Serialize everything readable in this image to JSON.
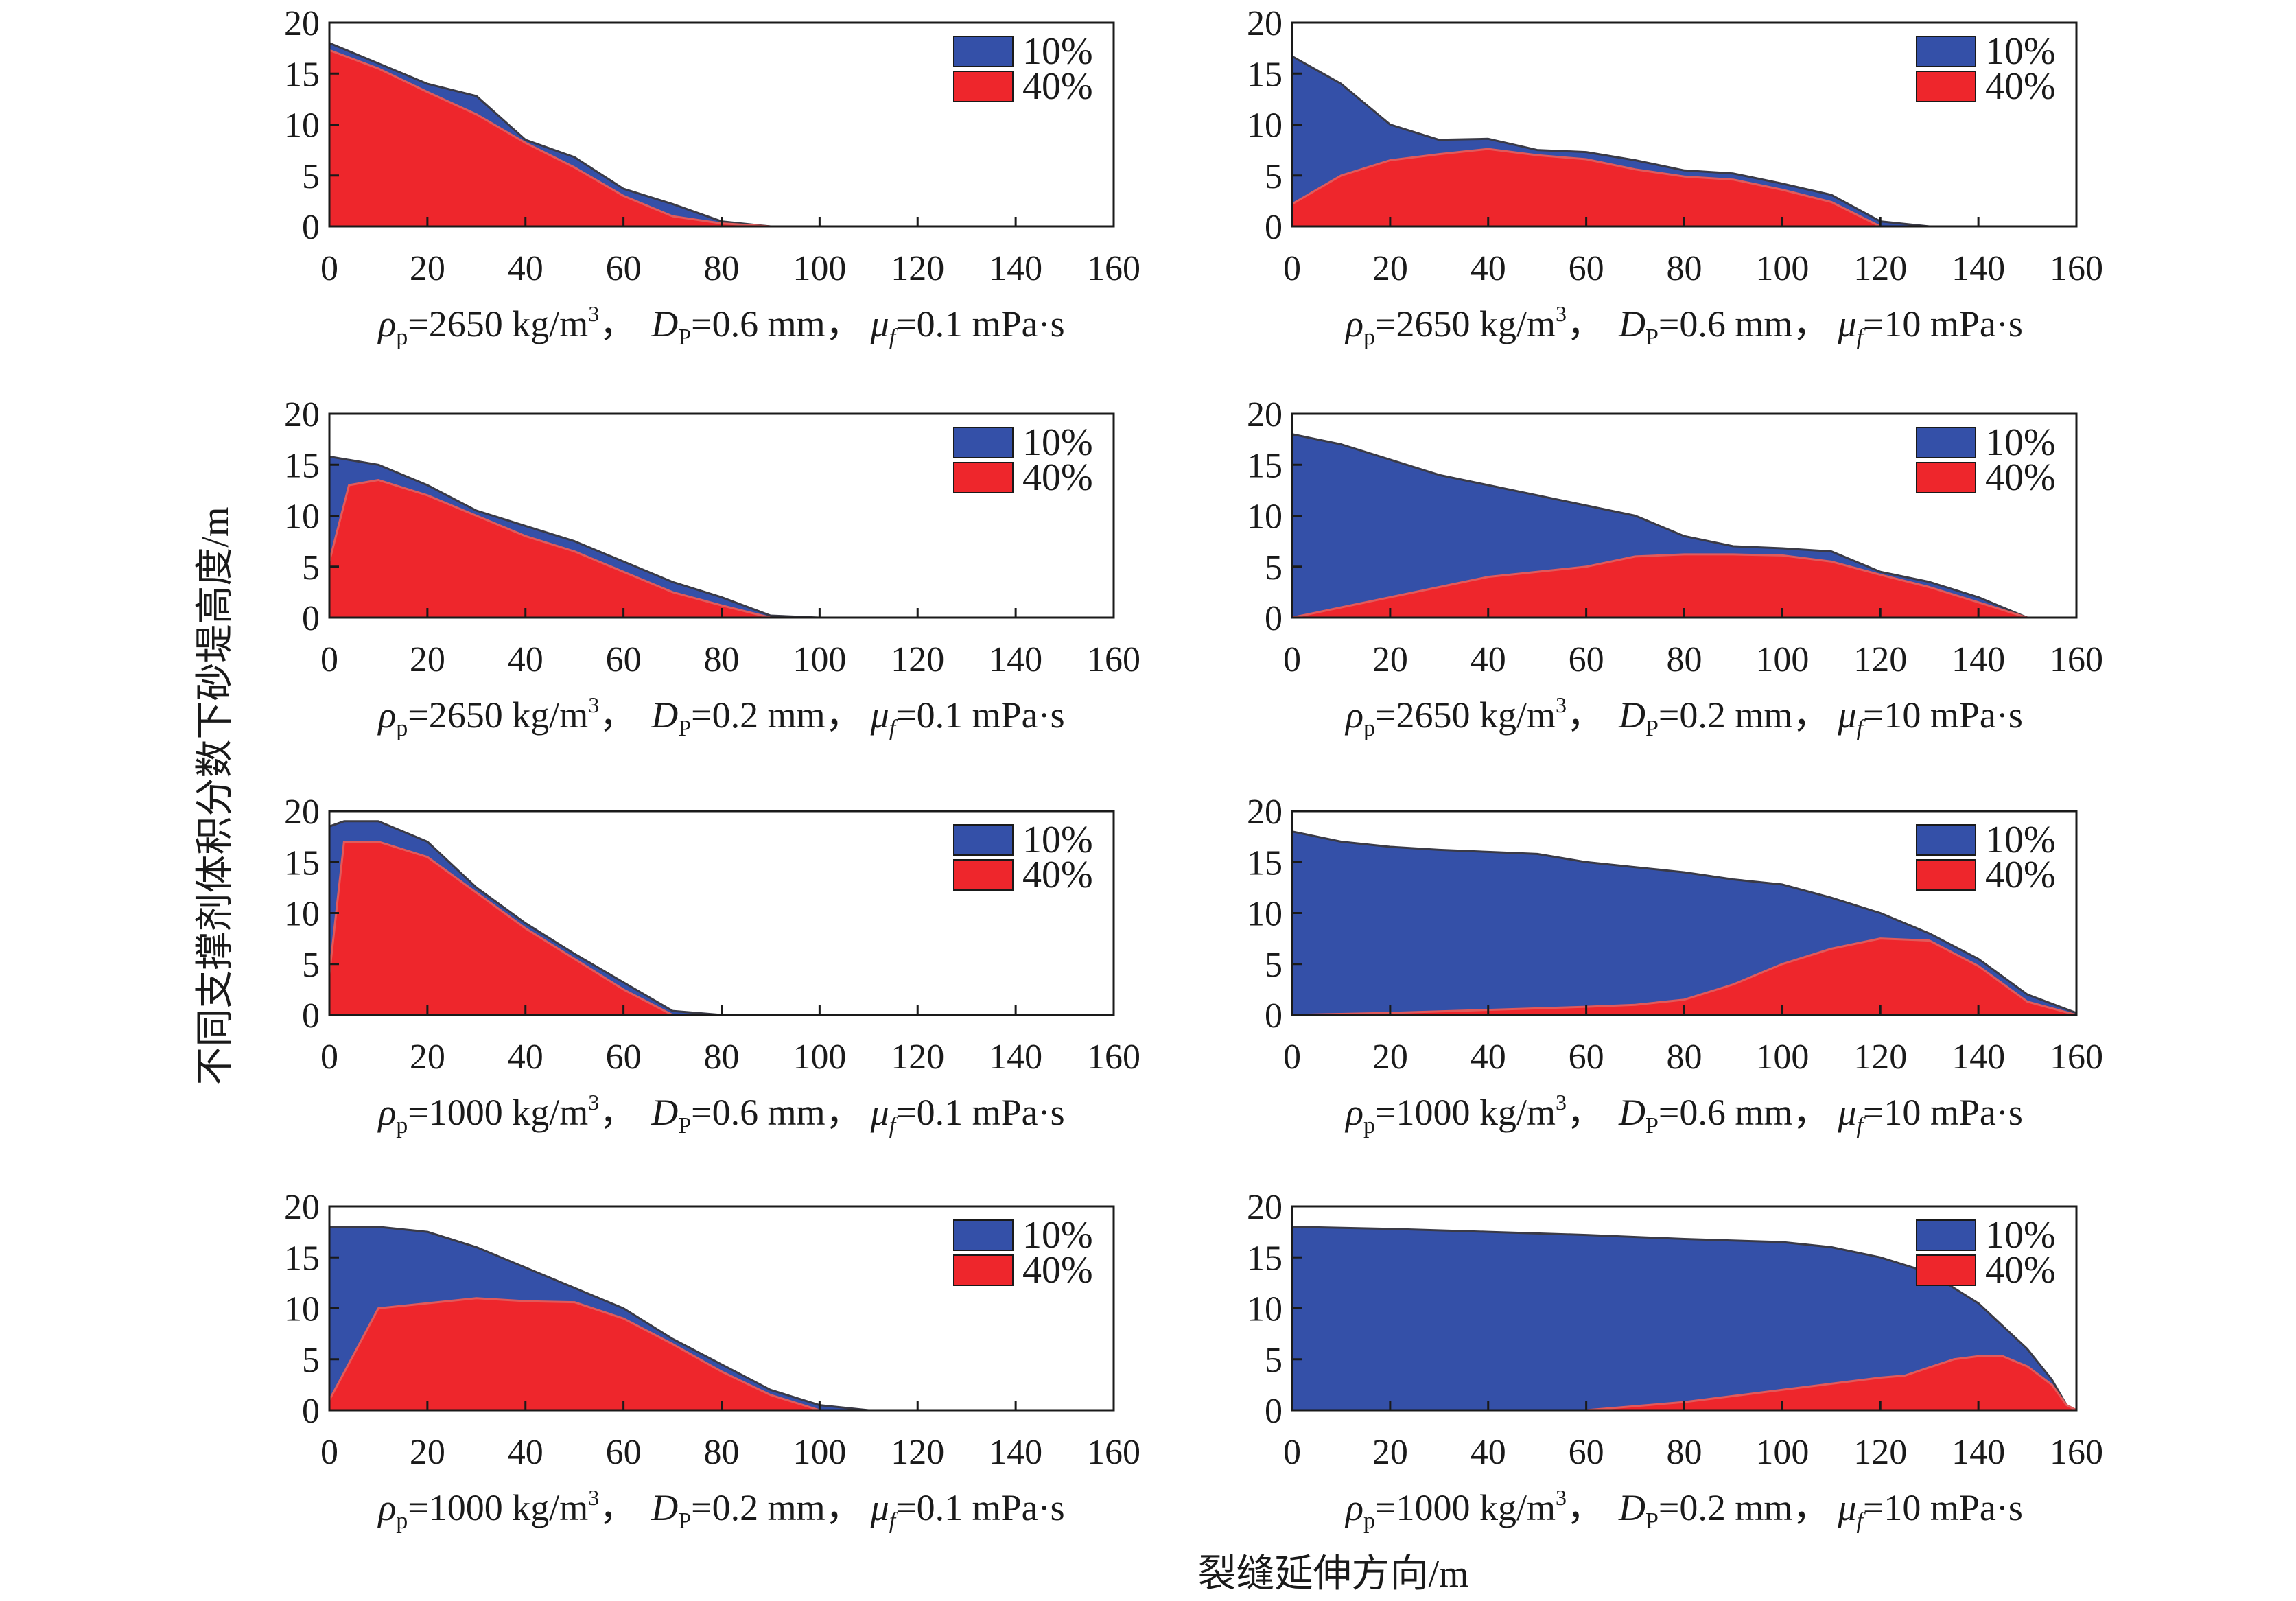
{
  "figure": {
    "ylabel": "不同支撑剂体积分数下砂堤高度/m",
    "xlabel": "裂缝延伸方向/m",
    "colors": {
      "series_10": "#3450a8",
      "series_40": "#ee262c",
      "axis": "#1a1a1a"
    }
  },
  "chart_data": [
    {
      "type": "area",
      "caption": {
        "rho": "=2650 kg/m",
        "d": "=0.6 mm，",
        "mu": "=0.1 mPa·s"
      },
      "xlim": [
        0,
        160
      ],
      "ylim": [
        0,
        20
      ],
      "xticks": [
        "0",
        "20",
        "40",
        "60",
        "80",
        "100",
        "120",
        "140",
        "160"
      ],
      "yticks": [
        "0",
        "5",
        "10",
        "15",
        "20"
      ],
      "legend": [
        "10%",
        "40%"
      ],
      "series": [
        {
          "name": "10%",
          "x": [
            0,
            10,
            20,
            30,
            40,
            50,
            60,
            70,
            80,
            90
          ],
          "y": [
            18,
            16,
            14,
            12.8,
            8.5,
            6.8,
            3.7,
            2.2,
            0.5,
            0
          ]
        },
        {
          "name": "40%",
          "x": [
            0,
            10,
            20,
            30,
            40,
            50,
            60,
            70,
            80,
            90
          ],
          "y": [
            17.3,
            15.5,
            13.2,
            11,
            8.2,
            5.8,
            3,
            1,
            0.3,
            0
          ]
        }
      ]
    },
    {
      "type": "area",
      "caption": {
        "rho": "=2650 kg/m",
        "d": "=0.6 mm，",
        "mu": "=10 mPa·s"
      },
      "xlim": [
        0,
        160
      ],
      "ylim": [
        0,
        20
      ],
      "xticks": [
        "0",
        "20",
        "40",
        "60",
        "80",
        "100",
        "120",
        "140",
        "160"
      ],
      "yticks": [
        "0",
        "5",
        "10",
        "15",
        "20"
      ],
      "legend": [
        "10%",
        "40%"
      ],
      "series": [
        {
          "name": "10%",
          "x": [
            0,
            10,
            20,
            30,
            40,
            50,
            60,
            70,
            80,
            90,
            100,
            110,
            120,
            130
          ],
          "y": [
            16.7,
            14,
            10,
            8.5,
            8.6,
            7.5,
            7.3,
            6.5,
            5.5,
            5.2,
            4.2,
            3.1,
            0.5,
            0
          ]
        },
        {
          "name": "40%",
          "x": [
            0,
            10,
            20,
            30,
            40,
            50,
            60,
            70,
            80,
            90,
            100,
            110,
            120
          ],
          "y": [
            2.2,
            5,
            6.5,
            7.1,
            7.6,
            7,
            6.6,
            5.6,
            4.9,
            4.6,
            3.6,
            2.4,
            0
          ]
        }
      ]
    },
    {
      "type": "area",
      "caption": {
        "rho": "=2650 kg/m",
        "d": "=0.2 mm，",
        "mu": "=0.1 mPa·s"
      },
      "xlim": [
        0,
        160
      ],
      "ylim": [
        0,
        20
      ],
      "xticks": [
        "0",
        "20",
        "40",
        "60",
        "80",
        "100",
        "120",
        "140",
        "160"
      ],
      "yticks": [
        "0",
        "5",
        "10",
        "15",
        "20"
      ],
      "legend": [
        "10%",
        "40%"
      ],
      "series": [
        {
          "name": "10%",
          "x": [
            0,
            10,
            20,
            30,
            40,
            50,
            60,
            70,
            80,
            90,
            100
          ],
          "y": [
            15.8,
            15,
            13,
            10.5,
            9,
            7.5,
            5.5,
            3.5,
            2,
            0.2,
            0
          ]
        },
        {
          "name": "40%",
          "x": [
            0,
            4,
            10,
            20,
            30,
            40,
            50,
            60,
            70,
            80,
            90
          ],
          "y": [
            5.5,
            13,
            13.5,
            12,
            10,
            8,
            6.5,
            4.5,
            2.5,
            1.2,
            0
          ]
        }
      ]
    },
    {
      "type": "area",
      "caption": {
        "rho": "=2650 kg/m",
        "d": "=0.2 mm，",
        "mu": "=10 mPa·s"
      },
      "xlim": [
        0,
        160
      ],
      "ylim": [
        0,
        20
      ],
      "xticks": [
        "0",
        "20",
        "40",
        "60",
        "80",
        "100",
        "120",
        "140",
        "160"
      ],
      "yticks": [
        "0",
        "5",
        "10",
        "15",
        "20"
      ],
      "legend": [
        "10%",
        "40%"
      ],
      "series": [
        {
          "name": "10%",
          "x": [
            0,
            10,
            20,
            30,
            40,
            50,
            60,
            70,
            80,
            90,
            100,
            110,
            120,
            130,
            140,
            150
          ],
          "y": [
            18,
            17,
            15.5,
            14,
            13,
            12,
            11,
            10,
            8,
            7,
            6.8,
            6.5,
            4.5,
            3.5,
            2,
            0
          ]
        },
        {
          "name": "40%",
          "x": [
            0,
            10,
            20,
            30,
            40,
            50,
            60,
            70,
            80,
            90,
            100,
            110,
            120,
            130,
            140,
            150
          ],
          "y": [
            0,
            1,
            2,
            3,
            4,
            4.5,
            5,
            6,
            6.2,
            6.2,
            6.1,
            5.5,
            4.2,
            3,
            1.5,
            0
          ]
        }
      ]
    },
    {
      "type": "area",
      "caption": {
        "rho": "=1000 kg/m",
        "d": "=0.6 mm，",
        "mu": "=0.1 mPa·s"
      },
      "xlim": [
        0,
        160
      ],
      "ylim": [
        0,
        20
      ],
      "xticks": [
        "0",
        "20",
        "40",
        "60",
        "80",
        "100",
        "120",
        "140",
        "160"
      ],
      "yticks": [
        "0",
        "5",
        "10",
        "15",
        "20"
      ],
      "legend": [
        "10%",
        "40%"
      ],
      "series": [
        {
          "name": "10%",
          "x": [
            0,
            3,
            10,
            20,
            30,
            40,
            50,
            60,
            70,
            80
          ],
          "y": [
            18.5,
            19,
            19,
            17,
            12.5,
            9,
            6,
            3.2,
            0.4,
            0
          ]
        },
        {
          "name": "40%",
          "x": [
            0,
            3,
            10,
            20,
            30,
            40,
            50,
            60,
            70
          ],
          "y": [
            4,
            17,
            17,
            15.5,
            12,
            8.5,
            5.5,
            2.5,
            0
          ]
        }
      ]
    },
    {
      "type": "area",
      "caption": {
        "rho": "=1000 kg/m",
        "d": "=0.6 mm，",
        "mu": "=10 mPa·s"
      },
      "xlim": [
        0,
        160
      ],
      "ylim": [
        0,
        20
      ],
      "xticks": [
        "0",
        "20",
        "40",
        "60",
        "80",
        "100",
        "120",
        "140",
        "160"
      ],
      "yticks": [
        "0",
        "5",
        "10",
        "15",
        "20"
      ],
      "legend": [
        "10%",
        "40%"
      ],
      "series": [
        {
          "name": "10%",
          "x": [
            0,
            10,
            20,
            30,
            40,
            50,
            60,
            70,
            80,
            90,
            100,
            110,
            120,
            130,
            140,
            150,
            160
          ],
          "y": [
            18,
            17,
            16.5,
            16.2,
            16,
            15.8,
            15,
            14.5,
            14,
            13.3,
            12.8,
            11.5,
            10,
            8,
            5.5,
            2,
            0.2
          ]
        },
        {
          "name": "40%",
          "x": [
            0,
            20,
            40,
            60,
            70,
            80,
            90,
            100,
            110,
            120,
            130,
            140,
            150,
            160
          ],
          "y": [
            0,
            0.2,
            0.5,
            0.8,
            1,
            1.5,
            3,
            5,
            6.5,
            7.5,
            7.3,
            4.8,
            1.3,
            0
          ]
        }
      ]
    },
    {
      "type": "area",
      "caption": {
        "rho": "=1000 kg/m",
        "d": "=0.2 mm，",
        "mu": "=0.1 mPa·s"
      },
      "xlim": [
        0,
        160
      ],
      "ylim": [
        0,
        20
      ],
      "xticks": [
        "0",
        "20",
        "40",
        "60",
        "80",
        "100",
        "120",
        "140",
        "160"
      ],
      "yticks": [
        "0",
        "5",
        "10",
        "15",
        "20"
      ],
      "legend": [
        "10%",
        "40%"
      ],
      "series": [
        {
          "name": "10%",
          "x": [
            0,
            10,
            20,
            30,
            40,
            50,
            60,
            70,
            80,
            90,
            100,
            110
          ],
          "y": [
            18,
            18,
            17.5,
            16,
            14,
            12,
            10,
            7,
            4.5,
            2,
            0.5,
            0
          ]
        },
        {
          "name": "40%",
          "x": [
            0,
            10,
            20,
            30,
            40,
            50,
            60,
            70,
            80,
            90,
            100
          ],
          "y": [
            1,
            10,
            10.5,
            11,
            10.7,
            10.6,
            9,
            6.5,
            3.8,
            1.5,
            0
          ]
        }
      ]
    },
    {
      "type": "area",
      "caption": {
        "rho": "=1000 kg/m",
        "d": "=0.2 mm，",
        "mu": "=10 mPa·s"
      },
      "xlim": [
        0,
        160
      ],
      "ylim": [
        0,
        20
      ],
      "xticks": [
        "0",
        "20",
        "40",
        "60",
        "80",
        "100",
        "120",
        "140",
        "160"
      ],
      "yticks": [
        "0",
        "5",
        "10",
        "15",
        "20"
      ],
      "legend": [
        "10%",
        "40%"
      ],
      "series": [
        {
          "name": "10%",
          "x": [
            0,
            20,
            40,
            60,
            80,
            100,
            110,
            120,
            130,
            140,
            150,
            155,
            158,
            160
          ],
          "y": [
            18,
            17.8,
            17.5,
            17.2,
            16.8,
            16.5,
            16,
            15,
            13.5,
            10.5,
            6,
            3,
            0.5,
            0
          ]
        },
        {
          "name": "40%",
          "x": [
            0,
            60,
            80,
            100,
            110,
            120,
            125,
            130,
            135,
            140,
            145,
            150,
            155,
            158,
            160
          ],
          "y": [
            0,
            0,
            0.8,
            2,
            2.6,
            3.2,
            3.4,
            4.2,
            5,
            5.3,
            5.3,
            4.3,
            2.5,
            0.5,
            0
          ]
        }
      ]
    }
  ]
}
